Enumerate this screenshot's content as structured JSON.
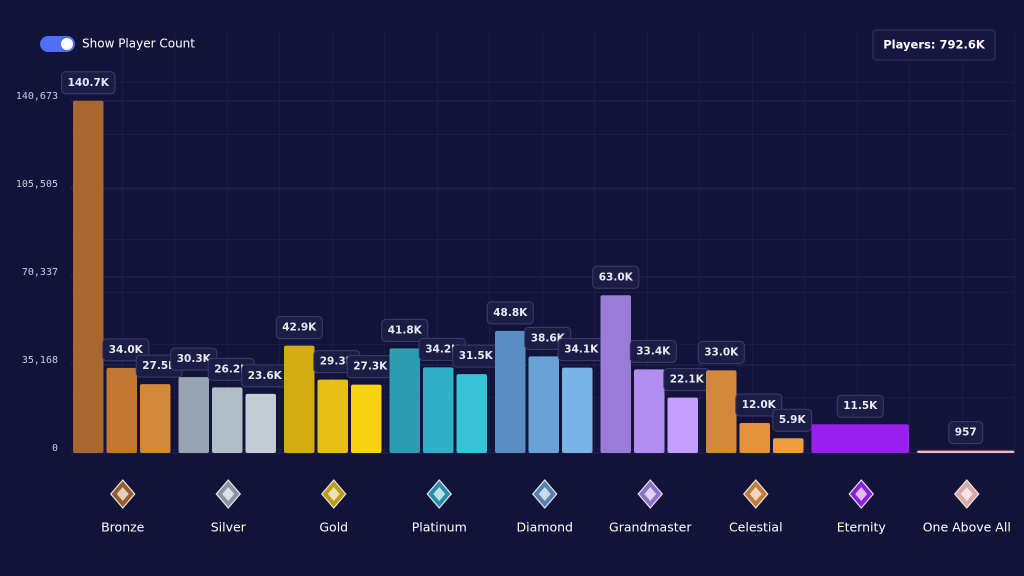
{
  "toggle_label": "Show Player Count",
  "players_label": "Players: 792.6K",
  "chart_data": {
    "type": "bar",
    "ylim": [
      0,
      145000
    ],
    "yticks": [
      0,
      {
        "value": 35168,
        "label": "35,168"
      },
      {
        "value": 70337,
        "label": "70,337"
      },
      {
        "value": 105505,
        "label": "105,505"
      },
      {
        "value": 140673,
        "label": "140,673"
      }
    ],
    "groups": [
      {
        "name": "Bronze",
        "values": [
          140700,
          34000,
          27500
        ],
        "value_labels": [
          "140.7K",
          "34.0K",
          "27.5K"
        ],
        "colors": [
          "#a8672e",
          "#c27732",
          "#d4883a"
        ]
      },
      {
        "name": "Silver",
        "values": [
          30300,
          26200,
          23600
        ],
        "value_labels": [
          "30.3K",
          "26.2K",
          "23.6K"
        ],
        "colors": [
          "#97a4b1",
          "#b2bec7",
          "#c2ced4"
        ]
      },
      {
        "name": "Gold",
        "values": [
          42900,
          29300,
          27300
        ],
        "value_labels": [
          "42.9K",
          "29.3K",
          "27.3K"
        ],
        "colors": [
          "#d1ad12",
          "#e6c014",
          "#f6d20f"
        ]
      },
      {
        "name": "Platinum",
        "values": [
          41800,
          34200,
          31500
        ],
        "value_labels": [
          "41.8K",
          "34.2K",
          "31.5K"
        ],
        "colors": [
          "#2b9db3",
          "#31b1c8",
          "#38c4d7"
        ]
      },
      {
        "name": "Diamond",
        "values": [
          48800,
          38600,
          34100
        ],
        "value_labels": [
          "48.8K",
          "38.6K",
          "34.1K"
        ],
        "colors": [
          "#5a8dc2",
          "#6aa2d6",
          "#7ab3e6"
        ]
      },
      {
        "name": "Grandmaster",
        "values": [
          63000,
          33400,
          22100
        ],
        "value_labels": [
          "63.0K",
          "33.4K",
          "22.1K"
        ],
        "colors": [
          "#9a7bd8",
          "#b18df1",
          "#c59eff"
        ]
      },
      {
        "name": "Celestial",
        "values": [
          33000,
          12000,
          5900
        ],
        "value_labels": [
          "33.0K",
          "12.0K",
          "5.9K"
        ],
        "colors": [
          "#d4883a",
          "#e6923a",
          "#f09d3e"
        ]
      },
      {
        "name": "Eternity",
        "values": [
          11500
        ],
        "value_labels": [
          "11.5K"
        ],
        "colors": [
          "#9a20f0"
        ]
      },
      {
        "name": "One Above All",
        "values": [
          957
        ],
        "colors": [
          "#f2b9b5"
        ]
      }
    ]
  }
}
